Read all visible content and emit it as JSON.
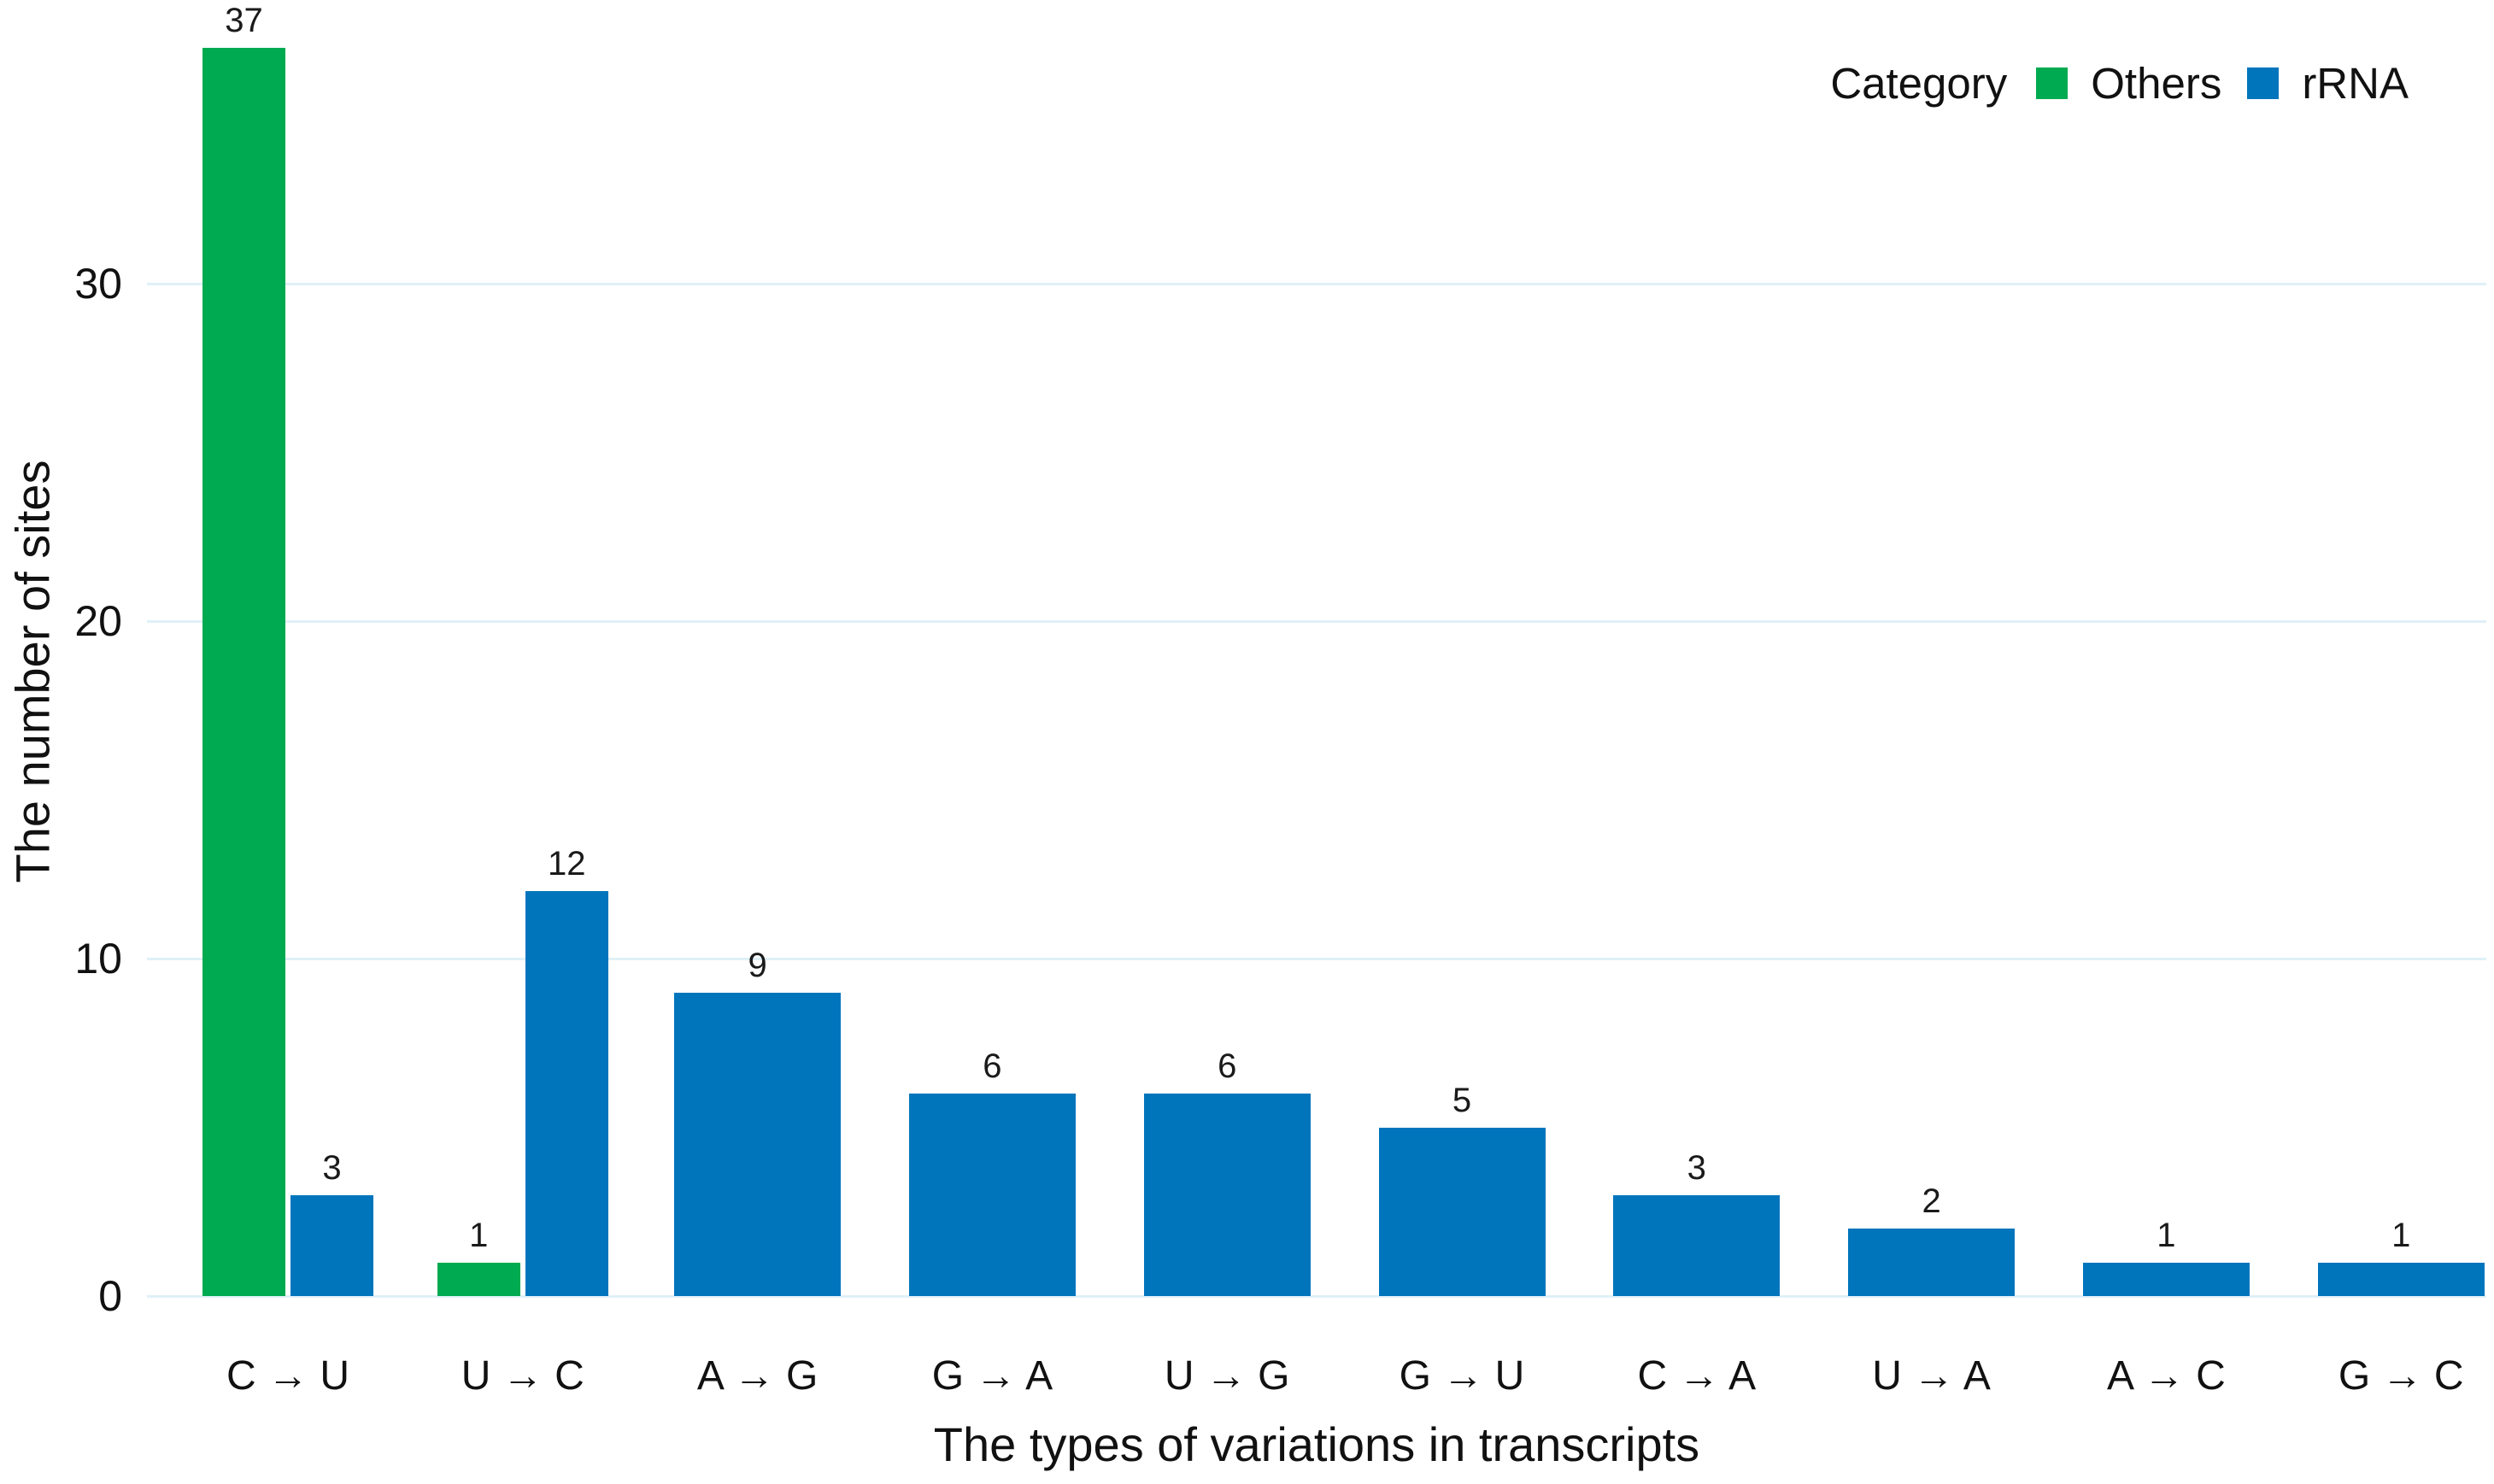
{
  "chart_data": {
    "type": "bar",
    "title": "",
    "xlabel": "The types of variations in transcripts",
    "ylabel": "The number of sites",
    "legend_title": "Category",
    "legend_position": "top-right",
    "grid": "horizontal-light",
    "categories": [
      "C → U",
      "U → C",
      "A → G",
      "G → A",
      "U → G",
      "G → U",
      "C → A",
      "U → A",
      "A → C",
      "G → C"
    ],
    "series": [
      {
        "name": "Others",
        "color": "#00aa50",
        "values": [
          37,
          1,
          null,
          null,
          null,
          null,
          null,
          null,
          null,
          null
        ]
      },
      {
        "name": "rRNA",
        "color": "#0075bc",
        "values": [
          3,
          12,
          9,
          6,
          6,
          5,
          3,
          2,
          1,
          1
        ]
      }
    ],
    "yticks": [
      0,
      10,
      20,
      30
    ],
    "ylim": [
      0,
      37
    ],
    "bar_value_labels": true,
    "colors": {
      "others": "#00aa50",
      "rrna": "#0075bc",
      "gridline": "#e0f1f7",
      "text": "#111111"
    }
  }
}
